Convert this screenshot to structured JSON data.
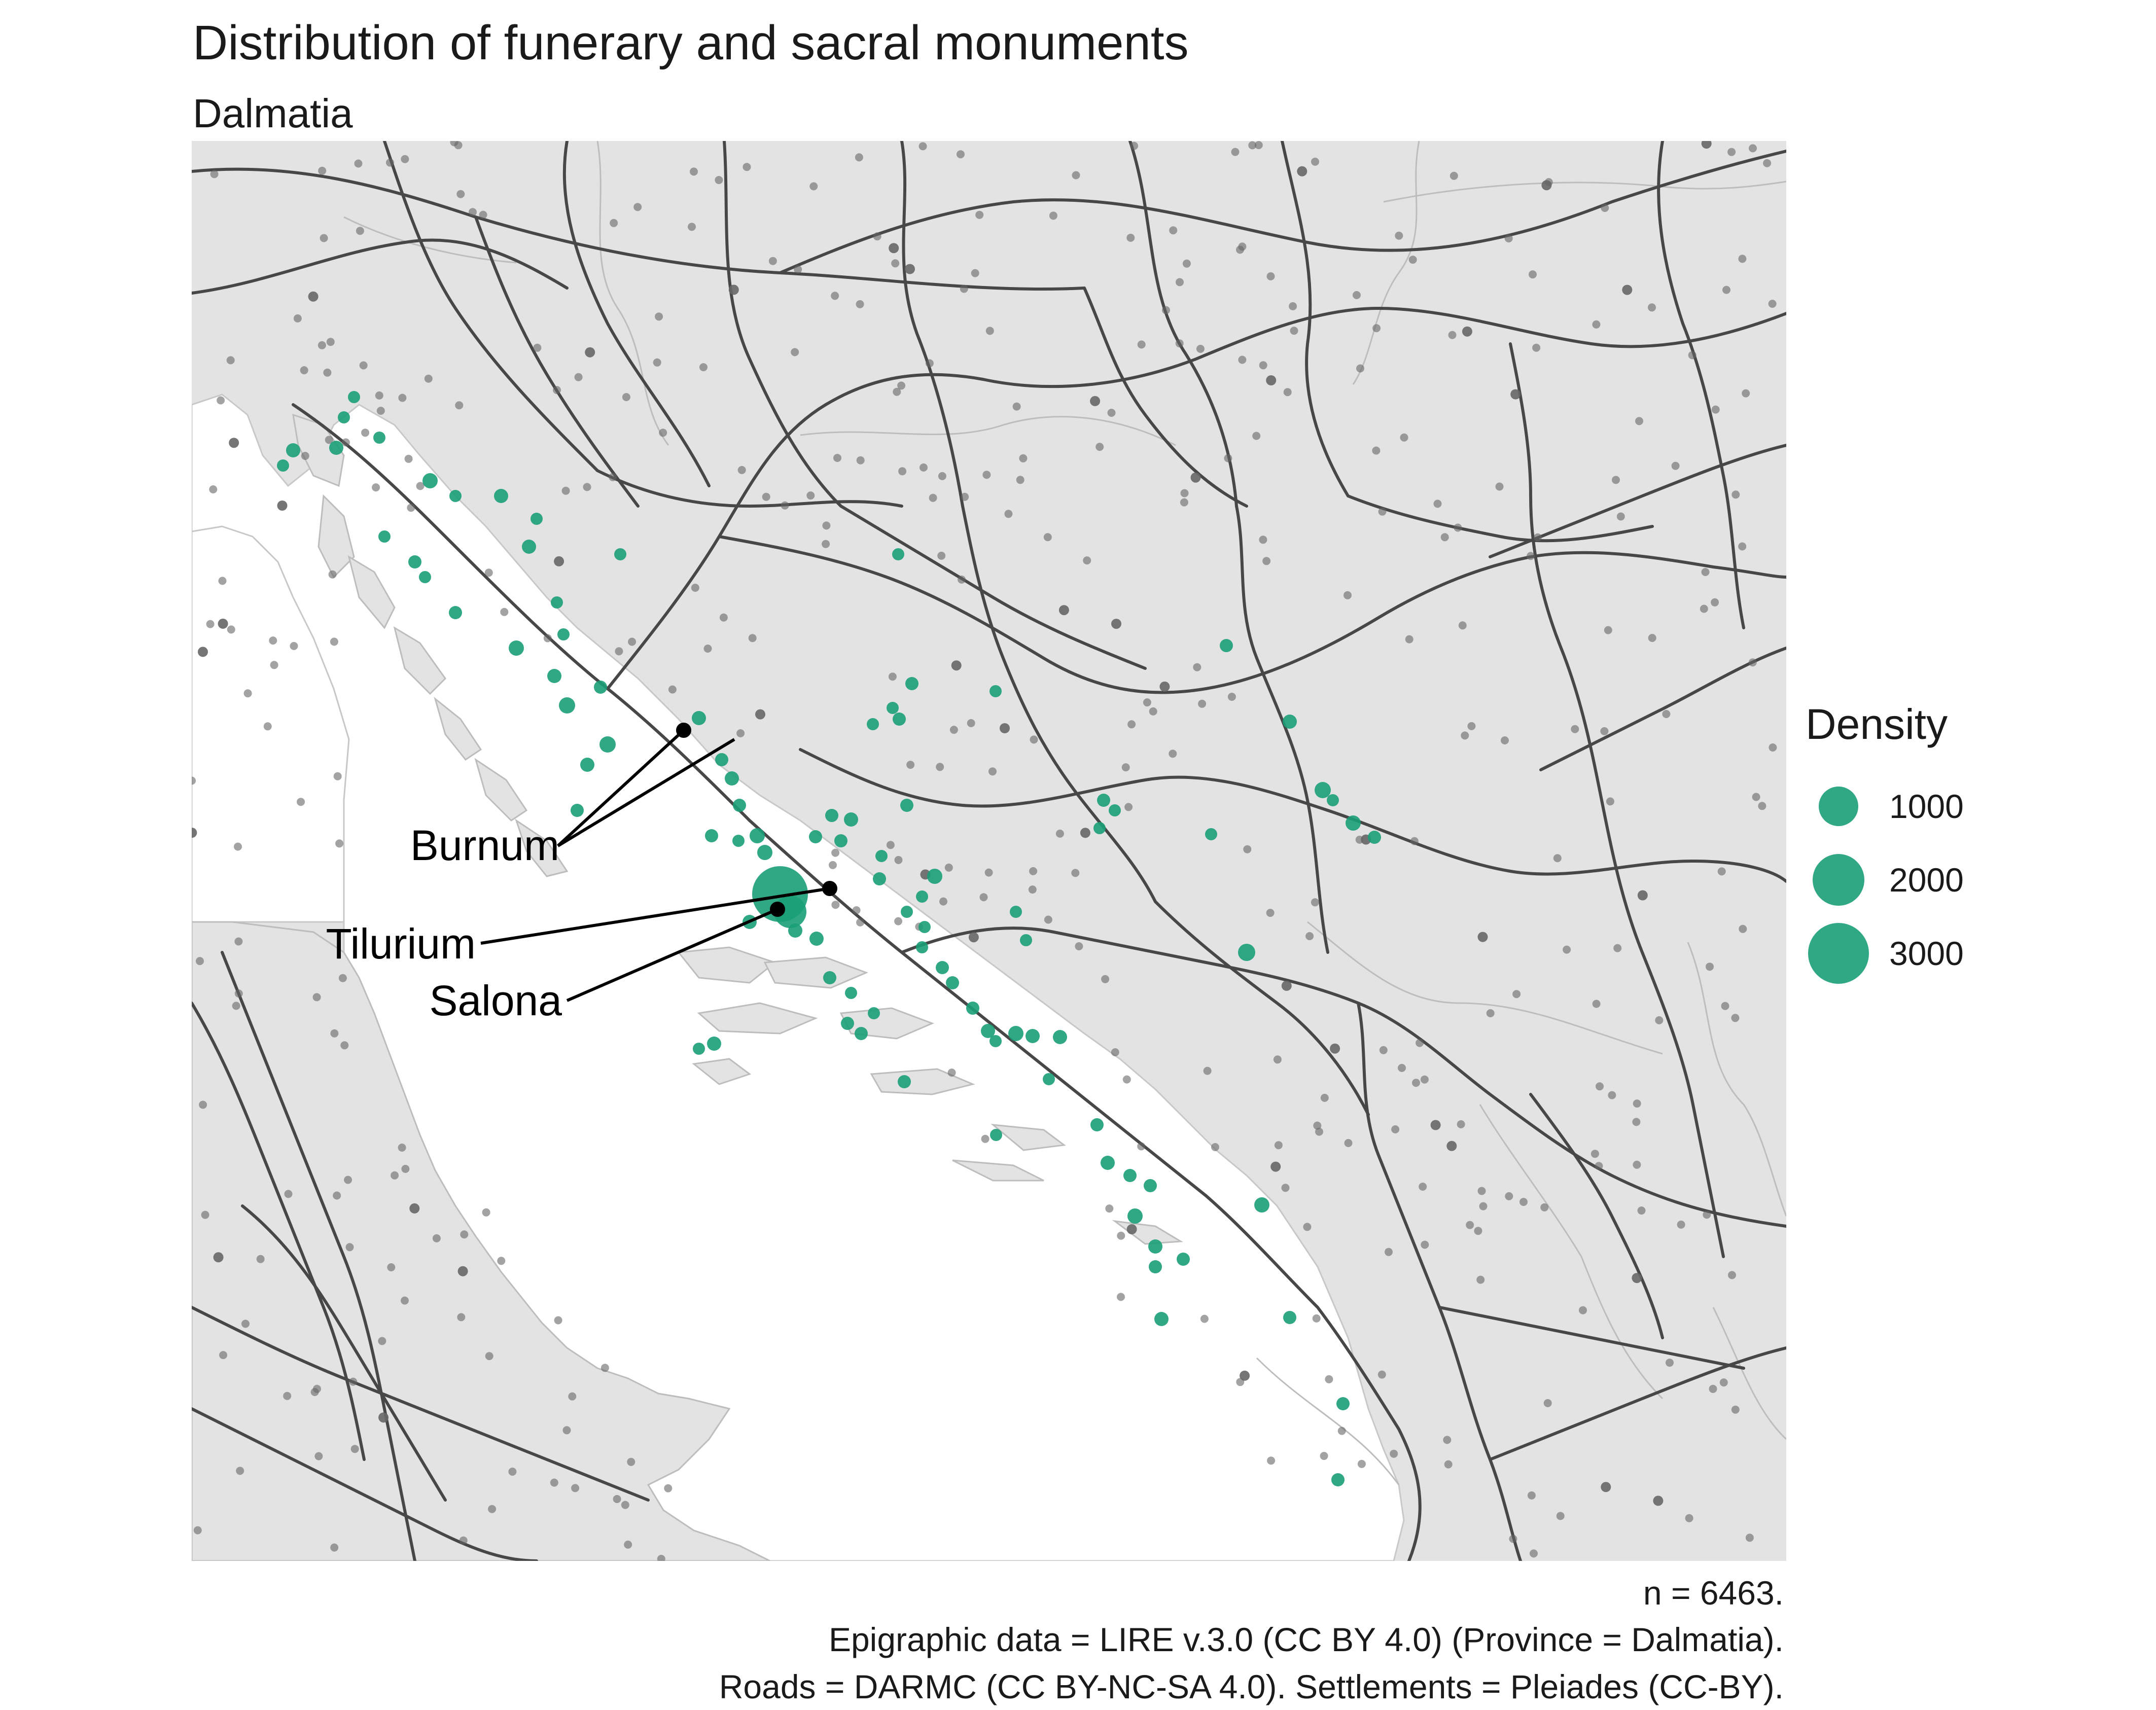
{
  "header": {
    "title": "Distribution of funerary and sacral monuments",
    "subtitle": "Dalmatia"
  },
  "colors": {
    "land": "#e3e3e3",
    "sea": "#ffffff",
    "road": "#474747",
    "border": "#bdbdbd",
    "settlement": "#666666",
    "monument": "#1b9e77",
    "label_marker": "#000000"
  },
  "map": {
    "labels": [
      {
        "name": "Burnum",
        "text": "Burnum"
      },
      {
        "name": "Tilurium",
        "text": "Tilurium"
      },
      {
        "name": "Salona",
        "text": "Salona"
      }
    ]
  },
  "legend": {
    "title": "Density",
    "items": [
      {
        "label": "1000",
        "value": 1000
      },
      {
        "label": "2000",
        "value": 2000
      },
      {
        "label": "3000",
        "value": 3000
      }
    ]
  },
  "caption": {
    "line1": "n = 6463.",
    "line2": "Epigraphic data = LIRE v.3.0 (CC BY 4.0) (Province = Dalmatia).",
    "line3": "Roads = DARMC (CC BY-NC-SA 4.0). Settlements = Pleiades (CC-BY)."
  }
}
